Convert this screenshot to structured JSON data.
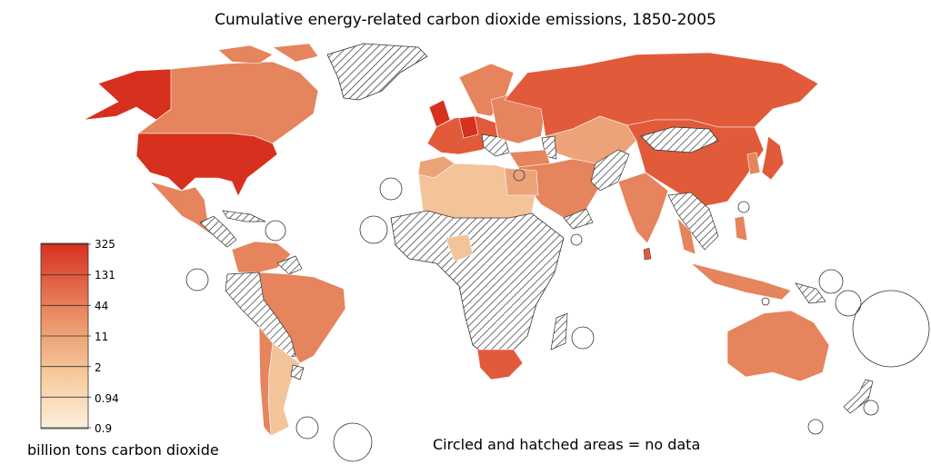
{
  "title": "Cumulative energy-related carbon dioxide emissions, 1850-2005",
  "legend": {
    "ticks": [
      "325",
      "131",
      "44",
      "11",
      "2",
      "0.94",
      "0.9"
    ],
    "colors": [
      "#d7301f",
      "#e34a33",
      "#e6644a",
      "#e9885f",
      "#f0a676",
      "#f5c99a",
      "#fbe6c6"
    ],
    "unit_label": "billion tons carbon dioxide"
  },
  "note": "Circled and hatched areas =  no data",
  "colors": {
    "highest": "#d7301f",
    "high": "#e15b3b",
    "mid": "#e6845d",
    "low_mid": "#eda37a",
    "low": "#f3c39a",
    "lowest": "#fbe6c6",
    "no_data_fill": "#ffffff",
    "hatch": "#333333",
    "border": "#ffffff"
  }
}
